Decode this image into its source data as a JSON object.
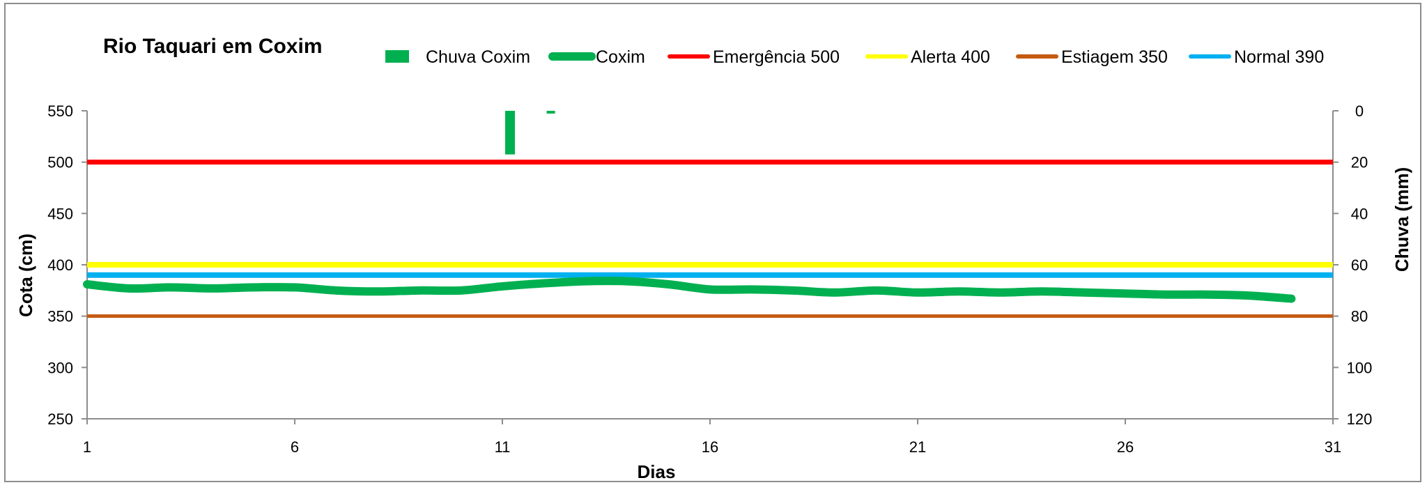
{
  "chart_data": {
    "type": "line",
    "title": "Rio Taquari em Coxim",
    "xlabel": "Dias",
    "ylabel": "Cota   (cm)",
    "y2label": "Chuva (mm)",
    "xlim": [
      1,
      31
    ],
    "ylim": [
      250,
      550
    ],
    "y2lim": [
      0,
      120
    ],
    "y2_inverted": true,
    "x_ticks": [
      1,
      6,
      11,
      16,
      21,
      26,
      31
    ],
    "y_ticks": [
      250,
      300,
      350,
      400,
      450,
      500,
      550
    ],
    "y2_ticks": [
      0,
      20,
      40,
      60,
      80,
      100,
      120
    ],
    "grid": false,
    "legend_position": "top",
    "colors": {
      "chuva": "#00b050",
      "coxim": "#00b050",
      "emergencia": "#ff0000",
      "alerta": "#ffff00",
      "estiagem": "#c55a11",
      "normal": "#00b0f0"
    },
    "series": [
      {
        "name": "Chuva Coxim",
        "type": "bar",
        "axis": "y2",
        "x": [
          11,
          12
        ],
        "values": [
          17,
          0.5
        ]
      },
      {
        "name": "Coxim",
        "type": "line",
        "axis": "y",
        "x": [
          1,
          2,
          3,
          4,
          5,
          6,
          7,
          8,
          9,
          10,
          11,
          12,
          13,
          14,
          15,
          16,
          17,
          18,
          19,
          20,
          21,
          22,
          23,
          24,
          25,
          26,
          27,
          28,
          29,
          30
        ],
        "values": [
          381,
          377,
          378,
          377,
          378,
          378,
          375,
          374,
          375,
          375,
          379,
          382,
          384,
          384,
          381,
          376,
          376,
          375,
          373,
          375,
          373,
          374,
          373,
          374,
          373,
          372,
          371,
          371,
          370,
          367
        ]
      },
      {
        "name": "Emergência 500",
        "type": "hline",
        "axis": "y",
        "value": 500
      },
      {
        "name": "Alerta 400",
        "type": "hline",
        "axis": "y",
        "value": 400
      },
      {
        "name": "Estiagem 350",
        "type": "hline",
        "axis": "y",
        "value": 350
      },
      {
        "name": "Normal  390",
        "type": "hline",
        "axis": "y",
        "value": 390
      }
    ]
  }
}
